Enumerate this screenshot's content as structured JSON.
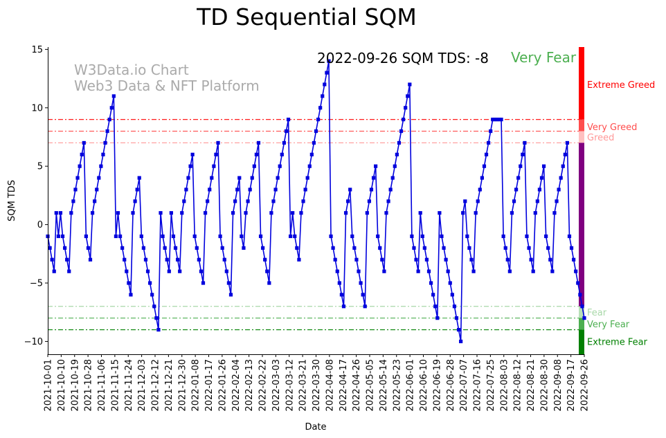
{
  "chart_data": {
    "type": "line",
    "title": "TD Sequential SQM",
    "xlabel": "Date",
    "ylabel": "SQM TDS",
    "ylim": [
      -11.1,
      15.2
    ],
    "yticks": [
      -10,
      -5,
      0,
      5,
      10,
      15
    ],
    "grid": false,
    "watermark": [
      "W3Data.io Chart",
      "Web3 Data & NFT Platform"
    ],
    "annotation": {
      "date": "2022-09-26",
      "text": "2022-09-26 SQM TDS: -8",
      "status": "Very Fear",
      "status_color": "#4caf50"
    },
    "x_ticks": [
      "2021-10-01",
      "2021-10-10",
      "2021-10-19",
      "2021-10-28",
      "2021-11-06",
      "2021-11-15",
      "2021-11-24",
      "2021-12-03",
      "2021-12-12",
      "2021-12-21",
      "2021-12-30",
      "2022-01-08",
      "2022-01-17",
      "2022-01-26",
      "2022-02-04",
      "2022-02-13",
      "2022-02-22",
      "2022-03-03",
      "2022-03-12",
      "2022-03-21",
      "2022-03-30",
      "2022-04-08",
      "2022-04-17",
      "2022-04-26",
      "2022-05-05",
      "2022-05-14",
      "2022-05-23",
      "2022-06-01",
      "2022-06-10",
      "2022-06-19",
      "2022-06-28",
      "2022-07-07",
      "2022-07-16",
      "2022-07-25",
      "2022-08-03",
      "2022-08-12",
      "2022-08-21",
      "2022-08-30",
      "2022-09-08",
      "2022-09-17",
      "2022-09-26"
    ],
    "x_start": "2021-10-01",
    "x_end": "2022-09-26",
    "series": [
      {
        "color": "#0000dd",
        "marker": "square",
        "values": [
          -1,
          -2,
          -3,
          -4,
          1,
          -1,
          1,
          -1,
          -2,
          -3,
          -4,
          1,
          2,
          3,
          4,
          5,
          6,
          7,
          -1,
          -2,
          -3,
          1,
          2,
          3,
          4,
          5,
          6,
          7,
          8,
          9,
          10,
          11,
          -1,
          1,
          -1,
          -2,
          -3,
          -4,
          -5,
          -6,
          1,
          2,
          3,
          4,
          -1,
          -2,
          -3,
          -4,
          -5,
          -6,
          -7,
          -8,
          -9,
          1,
          -1,
          -2,
          -3,
          -4,
          1,
          -1,
          -2,
          -3,
          -4,
          1,
          2,
          3,
          4,
          5,
          6,
          -1,
          -2,
          -3,
          -4,
          -5,
          1,
          2,
          3,
          4,
          5,
          6,
          7,
          -1,
          -2,
          -3,
          -4,
          -5,
          -6,
          1,
          2,
          3,
          4,
          -1,
          -2,
          1,
          2,
          3,
          4,
          5,
          6,
          7,
          -1,
          -2,
          -3,
          -4,
          -5,
          1,
          2,
          3,
          4,
          5,
          6,
          7,
          8,
          9,
          -1,
          1,
          -1,
          -2,
          -3,
          1,
          2,
          3,
          4,
          5,
          6,
          7,
          8,
          9,
          10,
          11,
          12,
          13,
          14,
          -1,
          -2,
          -3,
          -4,
          -5,
          -6,
          -7,
          1,
          2,
          3,
          -1,
          -2,
          -3,
          -4,
          -5,
          -6,
          -7,
          1,
          2,
          3,
          4,
          5,
          -1,
          -2,
          -3,
          -4,
          1,
          2,
          3,
          4,
          5,
          6,
          7,
          8,
          9,
          10,
          11,
          12,
          -1,
          -2,
          -3,
          -4,
          1,
          -1,
          -2,
          -3,
          -4,
          -5,
          -6,
          -7,
          -8,
          1,
          -1,
          -2,
          -3,
          -4,
          -5,
          -6,
          -7,
          -8,
          -9,
          -10,
          1,
          2,
          -1,
          -2,
          -3,
          -4,
          1,
          2,
          3,
          4,
          5,
          6,
          7,
          8,
          9,
          9,
          9,
          9,
          9,
          -1,
          -2,
          -3,
          -4,
          1,
          2,
          3,
          4,
          5,
          6,
          7,
          -1,
          -2,
          -3,
          -4,
          1,
          2,
          3,
          4,
          5,
          -1,
          -2,
          -3,
          -4,
          1,
          2,
          3,
          4,
          5,
          6,
          7,
          -1,
          -2,
          -3,
          -4,
          -5,
          -6,
          -7,
          -8
        ]
      }
    ],
    "thresholds": [
      {
        "value": 9,
        "label": "Extreme Greed",
        "color": "#ff0000"
      },
      {
        "value": 8,
        "label": "Very Greed",
        "color": "#ff4d4d"
      },
      {
        "value": 7,
        "label": "Greed",
        "color": "#ff9999"
      },
      {
        "value": -7,
        "label": "Fear",
        "color": "#a8d8a8"
      },
      {
        "value": -8,
        "label": "Very Fear",
        "color": "#4caf50"
      },
      {
        "value": -9,
        "label": "Extreme Fear",
        "color": "#008000"
      }
    ],
    "zone_bar": [
      {
        "from": 9,
        "to": 15.2,
        "color": "#ff0000"
      },
      {
        "from": 8,
        "to": 9,
        "color": "#ff4d4d"
      },
      {
        "from": 7,
        "to": 8,
        "color": "#ffc0c0"
      },
      {
        "from": -7,
        "to": 7,
        "color": "#800080"
      },
      {
        "from": -8,
        "to": -7,
        "color": "#b8e0b8"
      },
      {
        "from": -9,
        "to": -8,
        "color": "#4caf50"
      },
      {
        "from": -11.1,
        "to": -9,
        "color": "#008000"
      }
    ],
    "zone_labels": [
      {
        "value": 12,
        "label": "Extreme Greed",
        "color": "#ff0000"
      },
      {
        "value": 8.4,
        "label": "Very Greed",
        "color": "#ff4d4d"
      },
      {
        "value": 7.5,
        "label": "Greed",
        "color": "#ff9999"
      },
      {
        "value": -7.5,
        "label": "Fear",
        "color": "#a8d8a8"
      },
      {
        "value": -8.5,
        "label": "Very Fear",
        "color": "#4caf50"
      },
      {
        "value": -10,
        "label": "Extreme Fear",
        "color": "#008000"
      }
    ]
  }
}
